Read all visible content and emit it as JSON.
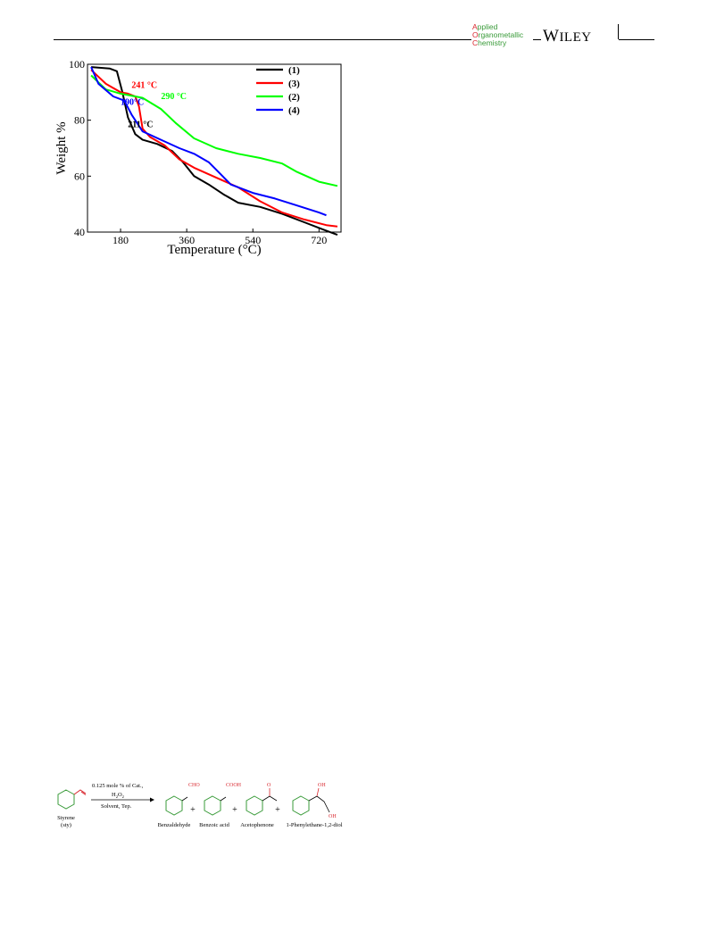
{
  "header": {
    "journal_lines": [
      {
        "cap": "A",
        "rest": "pplied"
      },
      {
        "cap": "O",
        "rest": "rganometallic"
      },
      {
        "cap": "C",
        "rest": "hemistry"
      }
    ],
    "publisher_first": "W",
    "publisher_rest": "ILEY"
  },
  "chart_data": {
    "type": "line",
    "xlabel": "Temperature (°C)",
    "ylabel": "Weight %",
    "xlim": [
      90,
      780
    ],
    "ylim": [
      40,
      100
    ],
    "x_ticks": [
      180,
      360,
      540,
      720
    ],
    "y_ticks": [
      40,
      60,
      80,
      100
    ],
    "grid": false,
    "legend_position": "top-right",
    "series": [
      {
        "name": "(1)",
        "color": "#000000",
        "x": [
          100,
          150,
          170,
          185,
          200,
          220,
          240,
          280,
          320,
          350,
          380,
          420,
          460,
          500,
          560,
          620,
          680,
          730,
          770
        ],
        "y": [
          99,
          98.5,
          97.5,
          90,
          81,
          75,
          73,
          71.5,
          69,
          65,
          60,
          57,
          53.5,
          50.5,
          49,
          46.5,
          43.5,
          41,
          39
        ]
      },
      {
        "name": "(3)",
        "color": "#ff0000",
        "x": [
          100,
          140,
          180,
          200,
          220,
          230,
          240,
          260,
          300,
          340,
          380,
          440,
          500,
          560,
          620,
          680,
          740,
          770
        ],
        "y": [
          98,
          93,
          90,
          89.5,
          88.5,
          85,
          77,
          74,
          71,
          66,
          63,
          59.5,
          56,
          51,
          47,
          44.5,
          42.5,
          42
        ]
      },
      {
        "name": "(2)",
        "color": "#00ff00",
        "x": [
          100,
          140,
          180,
          240,
          290,
          330,
          380,
          440,
          500,
          560,
          620,
          660,
          720,
          770
        ],
        "y": [
          96,
          91,
          89.5,
          88,
          84,
          79,
          73.5,
          70,
          68,
          66.5,
          64.5,
          61.5,
          58,
          56.5
        ]
      },
      {
        "name": "(4)",
        "color": "#0000ff",
        "x": [
          100,
          120,
          160,
          190,
          210,
          240,
          290,
          340,
          380,
          420,
          450,
          480,
          540,
          600,
          660,
          720,
          740
        ],
        "y": [
          99,
          93,
          88.5,
          87,
          82,
          76,
          73,
          70,
          68,
          65,
          61,
          57,
          54,
          52,
          49.5,
          47,
          46
        ]
      }
    ],
    "annotations": [
      {
        "text": "241 °C",
        "color": "#ff0000",
        "x": 210,
        "y": 91.5
      },
      {
        "text": "290 °C",
        "color": "#00ff00",
        "x": 290,
        "y": 87.5
      },
      {
        "text": "190°C",
        "color": "#0000ff",
        "x": 180,
        "y": 85.5
      },
      {
        "text": "211 °C",
        "color": "#000000",
        "x": 200,
        "y": 77.5
      }
    ]
  },
  "scheme": {
    "reactant": "Styrene",
    "reactant_abbr": "(sty)",
    "arrow_top_line1": "0.125 mole % of Cat.,",
    "arrow_top_line2_main": "H",
    "arrow_top_line2_sub1": "2",
    "arrow_top_line2_mid": "O",
    "arrow_top_line2_sub2": "2",
    "arrow_bottom": "Solvent, Tep.",
    "products": [
      "Benzaldehyde",
      "Benzoic acid",
      "Acetophenone",
      "1-Phenylethane-1,2-diol"
    ],
    "groups": {
      "aldehyde": "CHO",
      "acid": "COOH",
      "ketone": "O",
      "hydroxyl": "OH"
    },
    "plus": "+",
    "colors": {
      "ring": "#3a9b3a",
      "group": "#d9282f",
      "text": "#000000"
    }
  }
}
